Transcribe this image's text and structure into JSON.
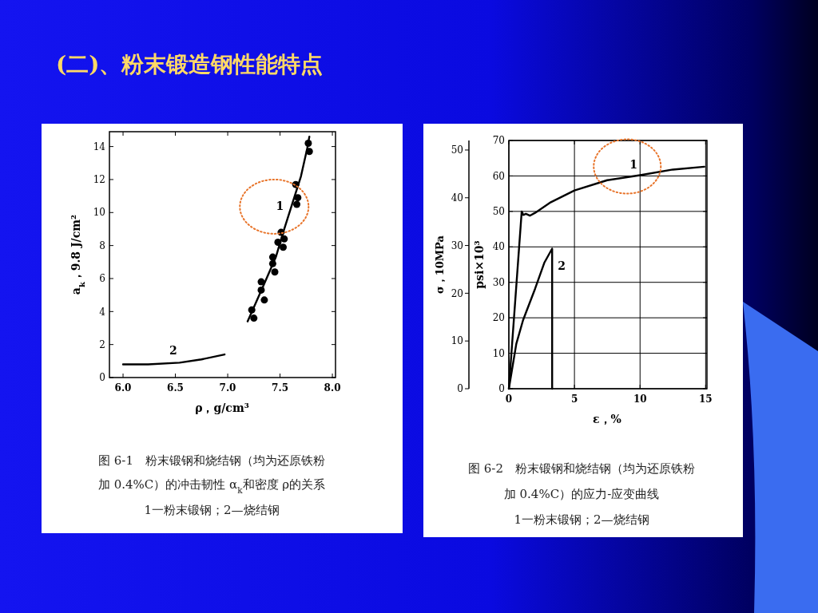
{
  "chart_data": [
    {
      "type": "line",
      "title": "(二)、粉末锻造钢性能特点",
      "xlabel": "ρ，g/cm³",
      "ylabel": "a$_{k}$，9.8 J/cm²",
      "xlim": [
        5.87,
        8.03
      ],
      "ylim": [
        0,
        14.9
      ],
      "xticks": [
        {
          "value": 6,
          "label": "6.0"
        },
        {
          "value": 6.5,
          "label": "6.5"
        },
        {
          "value": 7,
          "label": "7.0"
        },
        {
          "value": 7.5,
          "label": "7.5"
        },
        {
          "value": 8,
          "label": "8.0"
        }
      ],
      "yticks": [
        0,
        2,
        4,
        6,
        8,
        10,
        12,
        14
      ],
      "series": [
        {
          "type": "scatter",
          "marker": "circle",
          "color": "#000000",
          "x": [
            7.23,
            7.25,
            7.35,
            7.32,
            7.32,
            7.43,
            7.43,
            7.45,
            7.48,
            7.51,
            7.54,
            7.53,
            7.65,
            7.66,
            7.67,
            7.77,
            7.78
          ],
          "values": [
            4.1,
            3.6,
            4.7,
            5.8,
            5.3,
            7.3,
            6.9,
            6.4,
            8.2,
            8.8,
            8.4,
            7.9,
            11.7,
            10.5,
            10.9,
            14.2,
            13.7
          ]
        },
        {
          "name": "1",
          "color": "#000000",
          "x": [
            7.19,
            7.35,
            7.46,
            7.53,
            7.62,
            7.7,
            7.76,
            7.78
          ],
          "values": [
            3.4,
            5.7,
            7.3,
            8.8,
            10.6,
            12.2,
            13.9,
            14.6
          ]
        },
        {
          "name": "2",
          "color": "#000000",
          "x": [
            6.0,
            6.24,
            6.54,
            6.75,
            6.97
          ],
          "values": [
            0.8,
            0.8,
            0.9,
            1.1,
            1.4
          ]
        }
      ],
      "annotations": [
        "图 6-1　粉末锻钢和烧结钢（均为还原铁粉",
        "加 0.4%C）的冲击韧性 α$_{k}$和密度 ρ的关系",
        "1一粉末锻钢；2—烧结钢"
      ]
    },
    {
      "type": "line",
      "xlabel": "ε，%",
      "ylabel": "psi×10³",
      "y2label": "σ，10MPa",
      "xlim": [
        0,
        15.1
      ],
      "ylim": [
        0,
        70
      ],
      "y2lim": [
        0,
        52
      ],
      "xticks": [
        0,
        5,
        10,
        15
      ],
      "yticks": [
        0,
        10,
        20,
        30,
        40,
        50,
        60,
        70
      ],
      "y2ticks": [
        0,
        10,
        20,
        30,
        40,
        50
      ],
      "grid": true,
      "series": [
        {
          "name": "1",
          "color": "#000000",
          "x": [
            0,
            0.98,
            1.1,
            1.3,
            1.6,
            2.0,
            3.2,
            5.0,
            7.5,
            10,
            12.5,
            14.9
          ],
          "values": [
            0,
            50,
            49,
            49.3,
            48.8,
            49.6,
            52.6,
            55.9,
            58.8,
            60.2,
            61.8,
            62.6
          ]
        },
        {
          "name": "2",
          "color": "#000000",
          "x": [
            0,
            0.57,
            1.08,
            2.0,
            2.7,
            3.3,
            3.3
          ],
          "values": [
            0,
            12.7,
            19.3,
            28.2,
            35.5,
            39.5,
            0
          ]
        }
      ],
      "annotations": [
        "图 6-2　粉末锻钢和烧结钢（均为还原铁粉",
        "加 0.4%C）的应力-应变曲线",
        "1一粉末锻钢；2—烧结钢"
      ]
    }
  ]
}
